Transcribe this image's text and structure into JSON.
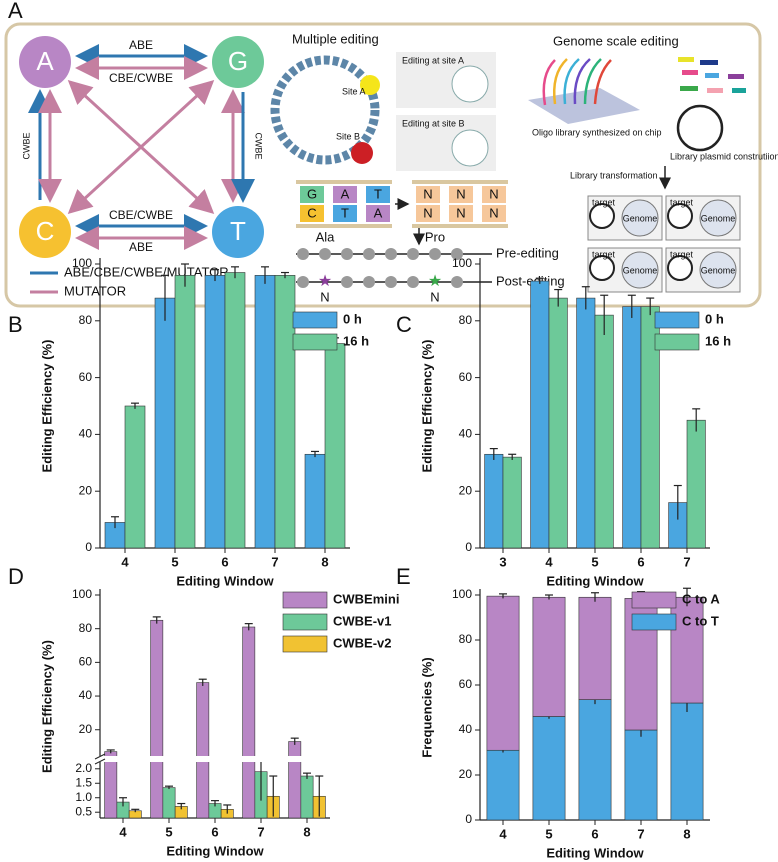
{
  "panel_a": {
    "label": "A",
    "nodes": [
      "A",
      "G",
      "C",
      "T"
    ],
    "edge_labels": [
      "ABE",
      "CBE/CWBE",
      "CWBE",
      "CWBE",
      "CBE/CWBE",
      "ABE"
    ],
    "legend": [
      "ABE/CBE/CWBE/MUTATOR",
      "MUTATOR"
    ],
    "multiple_editing": {
      "title": "Multiple editing",
      "site_a": "Site A",
      "site_b": "Site B",
      "editing_a": "Editing at site A",
      "editing_b": "Editing at site B",
      "before": [
        "G",
        "A",
        "T",
        "C",
        "T",
        "A"
      ],
      "after": [
        "N",
        "N",
        "N",
        "N",
        "N",
        "N"
      ],
      "ala": "Ala",
      "pro": "Pro",
      "pre": "Pre-editing",
      "post": "Post-editing",
      "mutations": [
        "N",
        "N"
      ]
    },
    "genome_scale": {
      "title": "Genome scale editing",
      "oligo": "Oligo library synthesized on chip",
      "plasmid": "Library plasmid construtiion",
      "transformation": "Library transformation",
      "targets": [
        "target",
        "target",
        "target",
        "target"
      ],
      "genomes": [
        "Genome",
        "Genome",
        "Genome",
        "Genome"
      ]
    }
  },
  "chart_data": [
    {
      "type": "bar",
      "panel_label": "B",
      "x_label": "Editing Window",
      "y_label": "Editing Efficiency (%)",
      "categories": [
        "4",
        "5",
        "6",
        "7",
        "8"
      ],
      "series": [
        {
          "name": "0 h",
          "color": "#4aa6e0",
          "values": [
            9,
            88,
            96,
            96,
            33
          ],
          "errors": [
            2,
            8,
            2,
            3,
            1
          ]
        },
        {
          "name": "16 h",
          "color": "#6dc999",
          "values": [
            50,
            96,
            97,
            96,
            72
          ],
          "errors": [
            1,
            4,
            2,
            1,
            2
          ]
        }
      ],
      "ylim": [
        0,
        100
      ],
      "yticks": [
        0,
        20,
        40,
        60,
        80,
        100
      ],
      "legend": "top-right"
    },
    {
      "type": "bar",
      "panel_label": "C",
      "x_label": "Editing Window",
      "y_label": "Editing Efficiency (%)",
      "categories": [
        "3",
        "4",
        "5",
        "6",
        "7"
      ],
      "series": [
        {
          "name": "0 h",
          "color": "#4aa6e0",
          "values": [
            33,
            94,
            88,
            85,
            16
          ],
          "errors": [
            2,
            1,
            4,
            4,
            6
          ]
        },
        {
          "name": "16 h",
          "color": "#6dc999",
          "values": [
            32,
            88,
            82,
            85,
            45
          ],
          "errors": [
            1,
            3,
            7,
            3,
            4
          ]
        }
      ],
      "ylim": [
        0,
        100
      ],
      "yticks": [
        0,
        20,
        40,
        60,
        80,
        100
      ],
      "legend": "top-right"
    },
    {
      "type": "bar",
      "panel_label": "D",
      "x_label": "Editing Window",
      "y_label": "Editing Efficiency (%)",
      "categories": [
        "4",
        "5",
        "6",
        "7",
        "8"
      ],
      "series": [
        {
          "name": "CWBEmini",
          "color": "#b886c5",
          "values": [
            7,
            85,
            48,
            81,
            13
          ],
          "errors": [
            1,
            2,
            2,
            2,
            2
          ]
        },
        {
          "name": "CWBE-v1",
          "color": "#6dc999",
          "values": [
            0.85,
            1.35,
            0.8,
            1.9,
            1.75
          ],
          "errors": [
            0.15,
            0.05,
            0.1,
            1,
            0.1
          ]
        },
        {
          "name": "CWBE-v2",
          "color": "#f1c232",
          "values": [
            0.55,
            0.7,
            0.6,
            1.05,
            1.05
          ],
          "errors": [
            0.05,
            0.1,
            0.15,
            0.7,
            0.7
          ]
        }
      ],
      "ylim": [
        0.3,
        2.2
      ],
      "ylim_upper": [
        5,
        100
      ],
      "yticks": [
        {
          "value": 0.5,
          "label": "0.5"
        },
        {
          "value": 1,
          "label": "1.0"
        },
        {
          "value": 1.5,
          "label": "1.5"
        },
        {
          "value": 2,
          "label": "2.0"
        },
        20,
        40,
        60,
        80,
        100
      ],
      "legend": "top-right"
    },
    {
      "type": "stacked_bar",
      "panel_label": "E",
      "x_label": "Editing Window",
      "y_label": "Frequencies (%)",
      "categories": [
        "4",
        "5",
        "6",
        "7",
        "8"
      ],
      "series": [
        {
          "name": "C to T",
          "color": "#4aa6e0",
          "values": [
            31,
            46,
            53.5,
            40,
            52
          ],
          "errors": [
            1,
            1,
            2,
            3,
            4
          ]
        },
        {
          "name": "C to A",
          "color": "#b886c5",
          "values": [
            68.5,
            53,
            45.5,
            58.5,
            47
          ],
          "errors": [
            1,
            1,
            2,
            3,
            4
          ]
        }
      ],
      "ylim": [
        0,
        100
      ],
      "yticks": [
        0,
        20,
        40,
        60,
        80,
        100
      ],
      "legend": "top-right"
    }
  ]
}
